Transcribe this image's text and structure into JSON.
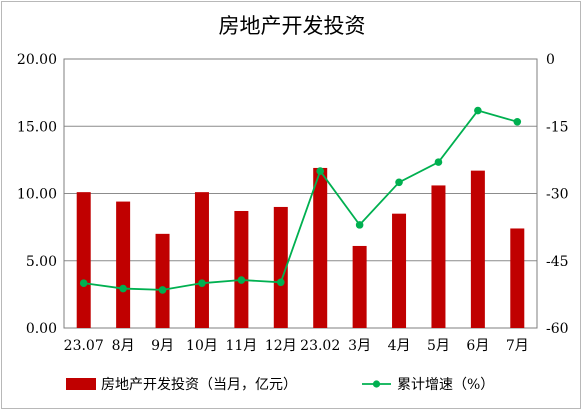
{
  "chart_data": {
    "type": "bar+line",
    "title": "房地产开发投资",
    "categories": [
      "23.07",
      "8月",
      "9月",
      "10月",
      "11月",
      "12月",
      "23.02",
      "3月",
      "4月",
      "5月",
      "6月",
      "7月"
    ],
    "series": [
      {
        "name": "房地产开发投资（当月，亿元）",
        "type": "bar",
        "axis": "left",
        "color": "#c00000",
        "values": [
          10.1,
          9.4,
          7.0,
          10.1,
          8.7,
          9.0,
          11.9,
          6.1,
          8.5,
          10.6,
          11.7,
          7.4
        ]
      },
      {
        "name": "累计增速（%）",
        "type": "line",
        "axis": "right",
        "color": "#00b050",
        "values": [
          -50.0,
          -51.2,
          -51.5,
          -50.0,
          -49.3,
          -49.8,
          -25.0,
          -37.0,
          -27.5,
          -23.0,
          -11.5,
          -14.0
        ]
      }
    ],
    "left_axis": {
      "min": 0,
      "max": 20,
      "ticks": [
        "0.00",
        "5.00",
        "10.00",
        "15.00",
        "20.00"
      ]
    },
    "right_axis": {
      "min": -60,
      "max": 0,
      "ticks": [
        "-60",
        "-45",
        "-30",
        "-15",
        "0"
      ]
    },
    "grid": true,
    "legend_position": "bottom"
  }
}
